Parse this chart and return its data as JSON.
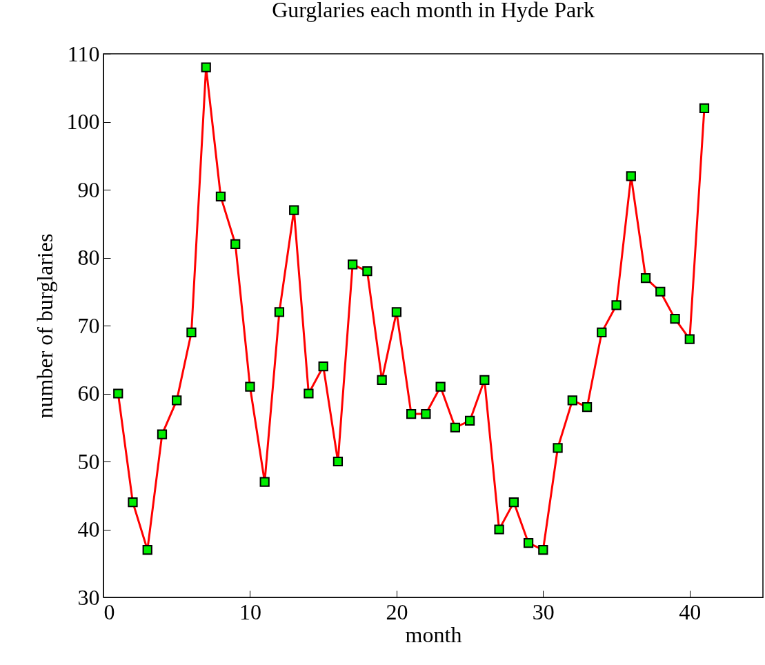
{
  "chart_data": {
    "type": "line",
    "title": "Gurglaries each month in Hyde Park",
    "xlabel": "month",
    "ylabel": "number of burglaries",
    "x": [
      1,
      2,
      3,
      4,
      5,
      6,
      7,
      8,
      9,
      10,
      11,
      12,
      13,
      14,
      15,
      16,
      17,
      18,
      19,
      20,
      21,
      22,
      23,
      24,
      25,
      26,
      27,
      28,
      29,
      30,
      31,
      32,
      33,
      34,
      35,
      36,
      37,
      38,
      39,
      40,
      41
    ],
    "values": [
      60,
      44,
      37,
      54,
      59,
      69,
      108,
      89,
      82,
      61,
      47,
      72,
      87,
      60,
      64,
      50,
      79,
      78,
      62,
      72,
      57,
      57,
      61,
      55,
      56,
      62,
      40,
      44,
      38,
      37,
      52,
      59,
      58,
      69,
      73,
      92,
      77,
      75,
      71,
      68,
      102
    ],
    "color": "#ff0000",
    "marker": "square",
    "line_style": "solid",
    "xlim": [
      0,
      45
    ],
    "xticks": [
      0,
      10,
      20,
      30,
      40
    ],
    "ylim": [
      30,
      110
    ],
    "yticks": [
      30,
      40,
      50,
      60,
      70,
      80,
      90,
      100,
      110
    ],
    "grid": false
  }
}
